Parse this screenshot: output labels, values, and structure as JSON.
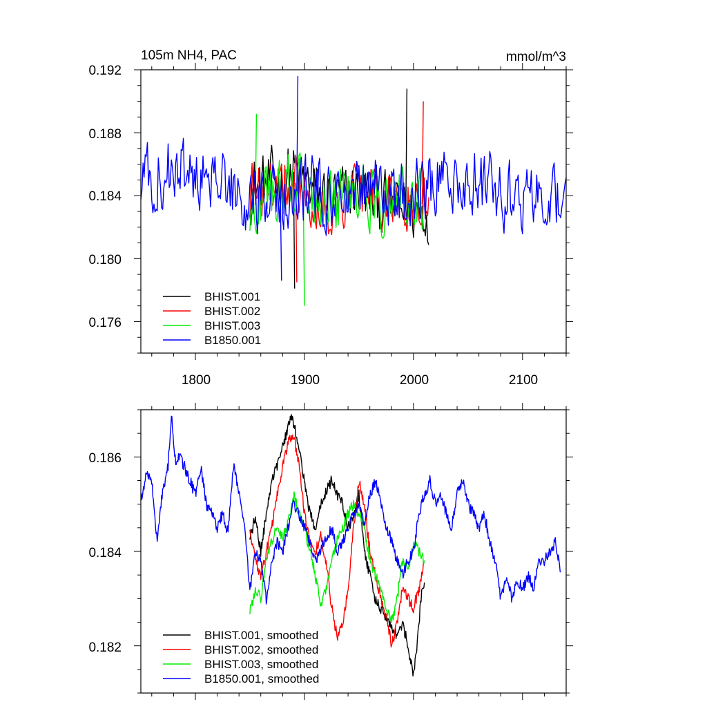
{
  "chart_data": [
    {
      "type": "line",
      "title_left": "105m NH4, PAC",
      "title_right": "mmol/m^3",
      "xlim": [
        1750,
        2140
      ],
      "ylim": [
        0.174,
        0.192
      ],
      "xticks": [
        1800,
        1900,
        2000,
        2100
      ],
      "xtick_labels": [
        "1800",
        "1900",
        "2000",
        "2100"
      ],
      "yticks": [
        0.176,
        0.18,
        0.184,
        0.188,
        0.192
      ],
      "ytick_labels": [
        "0.176",
        "0.180",
        "0.184",
        "0.188",
        "0.192"
      ],
      "legend_placement": "lower-left",
      "series": [
        {
          "name": "BHIST.001",
          "color": "#000000",
          "x_start": 1850,
          "x_end": 2014,
          "noise": 0.0028,
          "spike_max": 0.1908,
          "spike_min": 0.1781,
          "points": [
            [
              1850,
              0.1845
            ],
            [
              1870,
              0.1848
            ],
            [
              1890,
              0.1855
            ],
            [
              1910,
              0.1842
            ],
            [
              1930,
              0.1838
            ],
            [
              1950,
              0.1844
            ],
            [
              1970,
              0.1835
            ],
            [
              1990,
              0.1832
            ],
            [
              2000,
              0.183
            ],
            [
              2014,
              0.183
            ]
          ]
        },
        {
          "name": "BHIST.002",
          "color": "#ff0000",
          "x_start": 1850,
          "x_end": 2014,
          "noise": 0.0027,
          "spike_max": 0.19,
          "spike_min": 0.1785,
          "points": [
            [
              1850,
              0.1842
            ],
            [
              1870,
              0.1846
            ],
            [
              1885,
              0.1852
            ],
            [
              1910,
              0.1838
            ],
            [
              1930,
              0.183
            ],
            [
              1950,
              0.1845
            ],
            [
              1970,
              0.1838
            ],
            [
              1990,
              0.1834
            ],
            [
              2014,
              0.1835
            ]
          ]
        },
        {
          "name": "BHIST.003",
          "color": "#00ee00",
          "x_start": 1850,
          "x_end": 2010,
          "noise": 0.0027,
          "spike_max": 0.1892,
          "spike_min": 0.177,
          "points": [
            [
              1850,
              0.1832
            ],
            [
              1870,
              0.184
            ],
            [
              1890,
              0.1848
            ],
            [
              1910,
              0.1836
            ],
            [
              1930,
              0.1838
            ],
            [
              1950,
              0.1845
            ],
            [
              1970,
              0.1836
            ],
            [
              1990,
              0.1838
            ],
            [
              2010,
              0.1838
            ]
          ]
        },
        {
          "name": "B1850.001",
          "color": "#0000ff",
          "x_start": 1750,
          "x_end": 2140,
          "noise": 0.003,
          "spike_max": 0.1916,
          "spike_min": 0.1786,
          "points": [
            [
              1750,
              0.1852
            ],
            [
              1780,
              0.1856
            ],
            [
              1800,
              0.185
            ],
            [
              1830,
              0.1846
            ],
            [
              1850,
              0.1838
            ],
            [
              1870,
              0.1835
            ],
            [
              1900,
              0.1845
            ],
            [
              1930,
              0.1842
            ],
            [
              1960,
              0.185
            ],
            [
              1980,
              0.1838
            ],
            [
              2000,
              0.184
            ],
            [
              2020,
              0.1848
            ],
            [
              2040,
              0.1852
            ],
            [
              2060,
              0.1848
            ],
            [
              2080,
              0.1842
            ],
            [
              2100,
              0.1835
            ],
            [
              2140,
              0.1838
            ]
          ]
        }
      ]
    },
    {
      "type": "line",
      "xlim": [
        1750,
        2140
      ],
      "ylim": [
        0.181,
        0.187
      ],
      "xticks": [
        1800,
        1900,
        2000,
        2100
      ],
      "yticks": [
        0.182,
        0.184,
        0.186
      ],
      "ytick_labels": [
        "0.182",
        "0.184",
        "0.186"
      ],
      "legend_placement": "lower-left",
      "series": [
        {
          "name": "BHIST.001, smoothed",
          "color": "#000000",
          "noise": 0.00012,
          "points": [
            [
              1850,
              0.1843
            ],
            [
              1855,
              0.1847
            ],
            [
              1860,
              0.184
            ],
            [
              1865,
              0.1848
            ],
            [
              1870,
              0.1855
            ],
            [
              1875,
              0.1858
            ],
            [
              1880,
              0.1862
            ],
            [
              1885,
              0.1866
            ],
            [
              1888,
              0.1869
            ],
            [
              1892,
              0.1865
            ],
            [
              1895,
              0.1862
            ],
            [
              1900,
              0.1855
            ],
            [
              1905,
              0.1848
            ],
            [
              1910,
              0.1845
            ],
            [
              1915,
              0.185
            ],
            [
              1920,
              0.1853
            ],
            [
              1925,
              0.1855
            ],
            [
              1930,
              0.1852
            ],
            [
              1935,
              0.185
            ],
            [
              1940,
              0.1845
            ],
            [
              1945,
              0.1847
            ],
            [
              1950,
              0.1852
            ],
            [
              1955,
              0.184
            ],
            [
              1960,
              0.1835
            ],
            [
              1965,
              0.183
            ],
            [
              1970,
              0.1828
            ],
            [
              1975,
              0.1826
            ],
            [
              1980,
              0.1824
            ],
            [
              1985,
              0.1822
            ],
            [
              1990,
              0.1825
            ],
            [
              1995,
              0.182
            ],
            [
              2000,
              0.1814
            ],
            [
              2003,
              0.182
            ],
            [
              2007,
              0.183
            ],
            [
              2010,
              0.1834
            ]
          ]
        },
        {
          "name": "BHIST.002, smoothed",
          "color": "#ff0000",
          "noise": 0.00012,
          "points": [
            [
              1850,
              0.1845
            ],
            [
              1855,
              0.1838
            ],
            [
              1860,
              0.1835
            ],
            [
              1865,
              0.184
            ],
            [
              1870,
              0.1845
            ],
            [
              1875,
              0.1852
            ],
            [
              1880,
              0.1858
            ],
            [
              1885,
              0.1863
            ],
            [
              1890,
              0.1865
            ],
            [
              1895,
              0.1858
            ],
            [
              1900,
              0.1848
            ],
            [
              1905,
              0.1842
            ],
            [
              1910,
              0.184
            ],
            [
              1915,
              0.1843
            ],
            [
              1920,
              0.1838
            ],
            [
              1925,
              0.1828
            ],
            [
              1930,
              0.1822
            ],
            [
              1935,
              0.1825
            ],
            [
              1940,
              0.1832
            ],
            [
              1945,
              0.1845
            ],
            [
              1950,
              0.1855
            ],
            [
              1955,
              0.185
            ],
            [
              1960,
              0.184
            ],
            [
              1965,
              0.1835
            ],
            [
              1970,
              0.183
            ],
            [
              1975,
              0.1826
            ],
            [
              1980,
              0.182
            ],
            [
              1985,
              0.1825
            ],
            [
              1990,
              0.1832
            ],
            [
              1995,
              0.183
            ],
            [
              2000,
              0.1828
            ],
            [
              2005,
              0.1832
            ],
            [
              2010,
              0.1838
            ]
          ]
        },
        {
          "name": "BHIST.003, smoothed",
          "color": "#00ee00",
          "noise": 0.00012,
          "points": [
            [
              1850,
              0.1827
            ],
            [
              1855,
              0.1832
            ],
            [
              1860,
              0.183
            ],
            [
              1865,
              0.1838
            ],
            [
              1870,
              0.1842
            ],
            [
              1875,
              0.1845
            ],
            [
              1880,
              0.1843
            ],
            [
              1885,
              0.1846
            ],
            [
              1890,
              0.1852
            ],
            [
              1895,
              0.1848
            ],
            [
              1900,
              0.1845
            ],
            [
              1905,
              0.184
            ],
            [
              1910,
              0.1835
            ],
            [
              1915,
              0.1828
            ],
            [
              1920,
              0.1832
            ],
            [
              1925,
              0.1838
            ],
            [
              1930,
              0.1842
            ],
            [
              1935,
              0.1845
            ],
            [
              1940,
              0.1848
            ],
            [
              1945,
              0.185
            ],
            [
              1950,
              0.1848
            ],
            [
              1955,
              0.1845
            ],
            [
              1960,
              0.1838
            ],
            [
              1965,
              0.1835
            ],
            [
              1970,
              0.1832
            ],
            [
              1975,
              0.1828
            ],
            [
              1980,
              0.1825
            ],
            [
              1985,
              0.183
            ],
            [
              1990,
              0.1838
            ],
            [
              1995,
              0.1836
            ],
            [
              2000,
              0.1842
            ],
            [
              2005,
              0.184
            ],
            [
              2010,
              0.1838
            ]
          ]
        },
        {
          "name": "B1850.001, smoothed",
          "color": "#0000ff",
          "noise": 0.00012,
          "points": [
            [
              1750,
              0.1851
            ],
            [
              1755,
              0.1856
            ],
            [
              1760,
              0.1855
            ],
            [
              1765,
              0.1842
            ],
            [
              1770,
              0.1853
            ],
            [
              1775,
              0.1858
            ],
            [
              1778,
              0.1869
            ],
            [
              1782,
              0.1858
            ],
            [
              1785,
              0.186
            ],
            [
              1790,
              0.1858
            ],
            [
              1795,
              0.1855
            ],
            [
              1800,
              0.1852
            ],
            [
              1805,
              0.1858
            ],
            [
              1810,
              0.185
            ],
            [
              1815,
              0.1848
            ],
            [
              1820,
              0.1845
            ],
            [
              1825,
              0.1848
            ],
            [
              1830,
              0.1844
            ],
            [
              1835,
              0.1858
            ],
            [
              1840,
              0.1852
            ],
            [
              1845,
              0.1845
            ],
            [
              1850,
              0.1832
            ],
            [
              1855,
              0.184
            ],
            [
              1860,
              0.1838
            ],
            [
              1865,
              0.183
            ],
            [
              1870,
              0.1838
            ],
            [
              1875,
              0.1842
            ],
            [
              1880,
              0.184
            ],
            [
              1885,
              0.1845
            ],
            [
              1890,
              0.185
            ],
            [
              1895,
              0.1848
            ],
            [
              1900,
              0.1845
            ],
            [
              1905,
              0.1842
            ],
            [
              1910,
              0.1838
            ],
            [
              1915,
              0.184
            ],
            [
              1920,
              0.1843
            ],
            [
              1925,
              0.1845
            ],
            [
              1930,
              0.184
            ],
            [
              1935,
              0.1842
            ],
            [
              1940,
              0.1845
            ],
            [
              1945,
              0.1848
            ],
            [
              1950,
              0.185
            ],
            [
              1955,
              0.1845
            ],
            [
              1960,
              0.1852
            ],
            [
              1965,
              0.1855
            ],
            [
              1970,
              0.185
            ],
            [
              1975,
              0.1845
            ],
            [
              1980,
              0.1842
            ],
            [
              1985,
              0.1838
            ],
            [
              1990,
              0.1835
            ],
            [
              1995,
              0.1838
            ],
            [
              2000,
              0.184
            ],
            [
              2005,
              0.1848
            ],
            [
              2010,
              0.1852
            ],
            [
              2015,
              0.1855
            ],
            [
              2020,
              0.185
            ],
            [
              2025,
              0.1852
            ],
            [
              2030,
              0.1848
            ],
            [
              2035,
              0.1845
            ],
            [
              2040,
              0.1852
            ],
            [
              2045,
              0.1855
            ],
            [
              2050,
              0.185
            ],
            [
              2055,
              0.1848
            ],
            [
              2060,
              0.1845
            ],
            [
              2065,
              0.1848
            ],
            [
              2070,
              0.1842
            ],
            [
              2075,
              0.1838
            ],
            [
              2080,
              0.183
            ],
            [
              2085,
              0.1835
            ],
            [
              2090,
              0.183
            ],
            [
              2095,
              0.1834
            ],
            [
              2100,
              0.1832
            ],
            [
              2105,
              0.1835
            ],
            [
              2110,
              0.1832
            ],
            [
              2115,
              0.1838
            ],
            [
              2120,
              0.1838
            ],
            [
              2125,
              0.184
            ],
            [
              2130,
              0.1842
            ],
            [
              2135,
              0.1836
            ]
          ]
        }
      ]
    }
  ]
}
